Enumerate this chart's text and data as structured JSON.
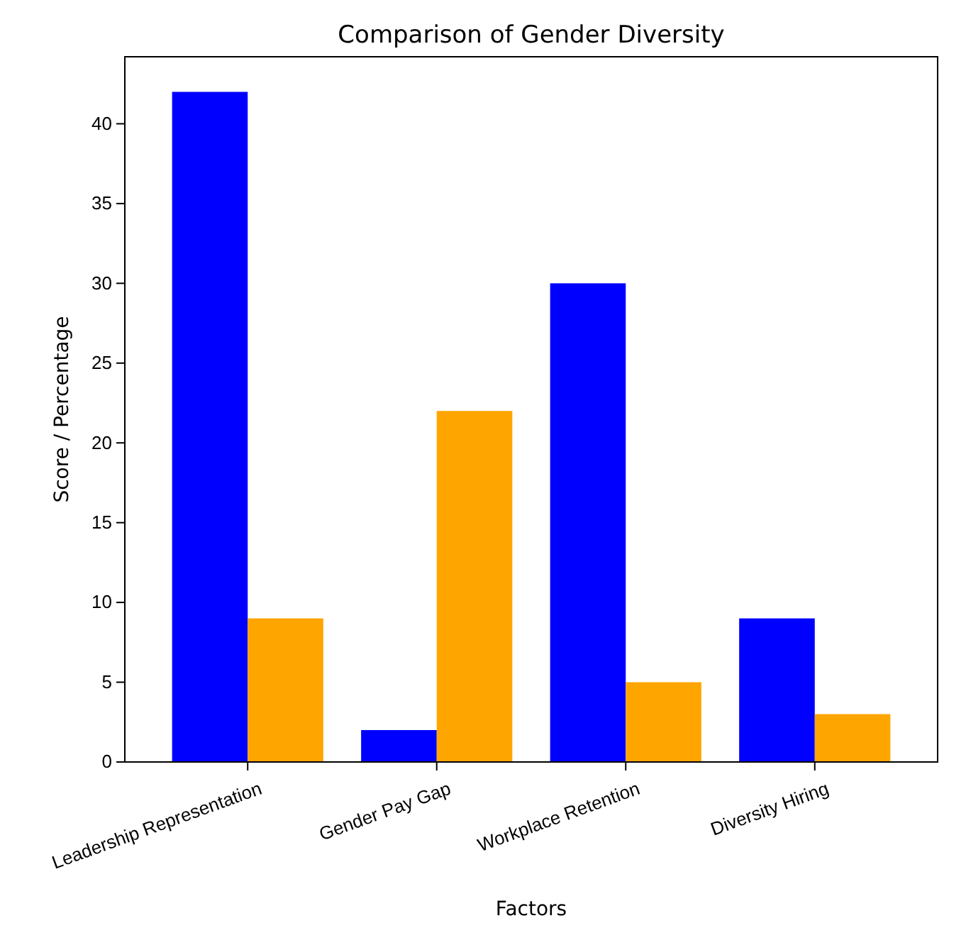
{
  "chart_data": {
    "type": "bar",
    "title": "Comparison of Gender Diversity",
    "xlabel": "Factors",
    "ylabel": "Score / Percentage",
    "categories": [
      "Leadership Representation",
      "Gender Pay Gap",
      "Workplace Retention",
      "Diversity Hiring"
    ],
    "series": [
      {
        "color": "#0000ff",
        "values": [
          42,
          2,
          30,
          9
        ]
      },
      {
        "color": "#ffa500",
        "values": [
          9,
          22,
          5,
          3
        ]
      }
    ],
    "ylim": [
      0,
      44.2
    ],
    "yticks": [
      0,
      5,
      10,
      15,
      20,
      25,
      30,
      35,
      40
    ],
    "grid": false,
    "legend": false
  }
}
